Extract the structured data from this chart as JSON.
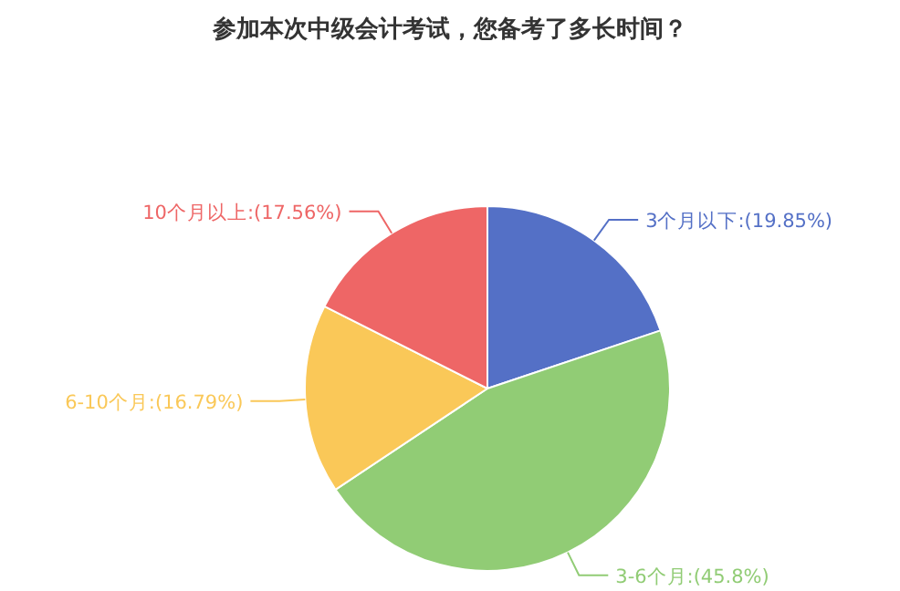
{
  "chart_data": {
    "type": "pie",
    "title": "参加本次中级会计考试，您备考了多长时间？",
    "categories": [
      "3个月以下",
      "3-6个月",
      "6-10个月",
      "10个月以上"
    ],
    "values": [
      19.85,
      45.8,
      16.79,
      17.56
    ],
    "value_labels": [
      ":(19.85%)",
      ":(45.8%)",
      ":(16.79%)",
      ":(17.56%)"
    ],
    "colors": [
      "#5470c6",
      "#91cc75",
      "#fac858",
      "#ee6666"
    ]
  }
}
